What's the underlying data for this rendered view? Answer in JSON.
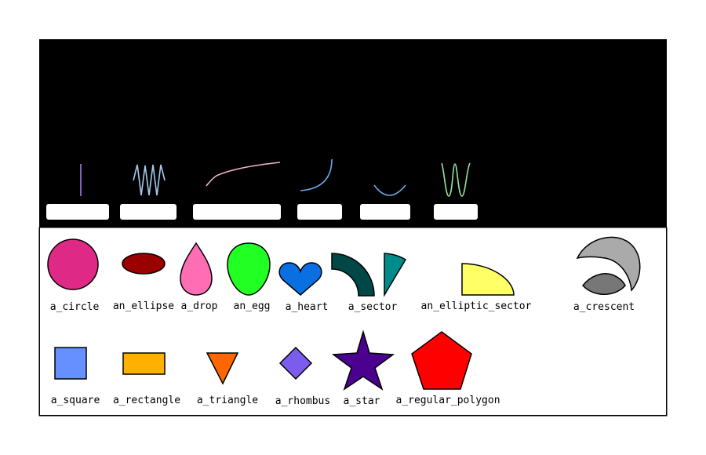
{
  "colors": {
    "upper_panel_bg": "#000000",
    "lower_panel_bg": "#ffffff",
    "label_box": "#ffffff",
    "stroke": "#000000",
    "line_colors": [
      "#a779e6",
      "#a6c8f0",
      "#f7b6d2",
      "#6fa8ec",
      "#6fa8ec",
      "#98e39a"
    ]
  },
  "upper_panel": {
    "lines": [
      {
        "kind": "vertical-line",
        "color": "#a779e6"
      },
      {
        "kind": "zigzag",
        "color": "#a6c8f0"
      },
      {
        "kind": "rising-curve",
        "color": "#f7b6d2"
      },
      {
        "kind": "quarter-arc",
        "color": "#6fa8ec"
      },
      {
        "kind": "smile-arc",
        "color": "#6fa8ec"
      },
      {
        "kind": "wave",
        "color": "#98e39a"
      }
    ],
    "label_boxes": [
      "",
      "",
      "",
      "",
      "",
      ""
    ]
  },
  "shapes_row1": [
    {
      "label": "a_circle",
      "fill": "#de2a86"
    },
    {
      "label": "an_ellipse",
      "fill": "#990000"
    },
    {
      "label": "a_drop",
      "fill": "#ff6eb4"
    },
    {
      "label": "an_egg",
      "fill": "#22ff22"
    },
    {
      "label": "a_heart",
      "fill": "#0a6fe0"
    },
    {
      "label": "a_sector",
      "fill": "#004848",
      "fill2": "#008b8b"
    },
    {
      "label": "an_elliptic_sector",
      "fill": "#ffff66"
    },
    {
      "label": "a_crescent",
      "fill": "#aaaaaa",
      "fill2": "#777777"
    }
  ],
  "shapes_row2": [
    {
      "label": "a_square",
      "fill": "#6690ff"
    },
    {
      "label": "a_rectangle",
      "fill": "#ffb000"
    },
    {
      "label": "a_triangle",
      "fill": "#ff6600"
    },
    {
      "label": "a_rhombus",
      "fill": "#7b5ced"
    },
    {
      "label": "a_star",
      "fill": "#4b0090"
    },
    {
      "label": "a_regular_polygon",
      "fill": "#ff0000"
    }
  ]
}
